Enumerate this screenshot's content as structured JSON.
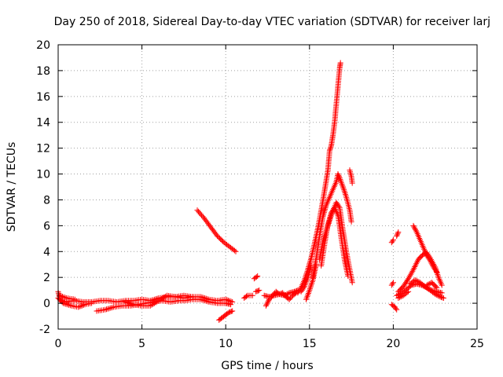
{
  "chart_data": {
    "type": "scatter",
    "title": "Day 250 of 2018, Sidereal Day-to-day VTEC variation (SDTVAR) for receiver larj",
    "xlabel": "GPS time / hours",
    "ylabel": "SDTVAR / TECUs",
    "xlim": [
      0,
      25
    ],
    "ylim": [
      -2,
      20
    ],
    "xticks": [
      "0",
      "5",
      "10",
      "15",
      "20",
      "25"
    ],
    "yticks": [
      "-2",
      "0",
      "2",
      "4",
      "6",
      "8",
      "10",
      "12",
      "14",
      "16",
      "18",
      "20"
    ],
    "grid": true,
    "marker": "plus",
    "color": "#ff0000",
    "tracks": [
      {
        "points": [
          [
            0.0,
            0.9
          ],
          [
            0.1,
            0.3
          ],
          [
            0.4,
            0.1
          ],
          [
            1.0,
            0.2
          ],
          [
            1.5,
            0.1
          ],
          [
            2.0,
            0.1
          ],
          [
            2.5,
            0.2
          ],
          [
            3.0,
            0.2
          ],
          [
            3.5,
            0.1
          ],
          [
            4.0,
            0.2
          ],
          [
            4.5,
            0.2
          ],
          [
            5.0,
            0.3
          ],
          [
            5.5,
            0.2
          ],
          [
            6.0,
            0.4
          ],
          [
            6.5,
            0.5
          ],
          [
            7.0,
            0.5
          ],
          [
            7.5,
            0.4
          ],
          [
            8.0,
            0.5
          ],
          [
            8.5,
            0.5
          ],
          [
            9.0,
            0.3
          ],
          [
            9.5,
            0.2
          ],
          [
            10.0,
            0.3
          ],
          [
            10.4,
            0.1
          ]
        ]
      },
      {
        "points": [
          [
            0.0,
            0.4
          ],
          [
            0.3,
            0.0
          ],
          [
            0.8,
            -0.2
          ],
          [
            1.2,
            -0.3
          ],
          [
            1.6,
            -0.1
          ],
          [
            2.0,
            0.0
          ]
        ]
      },
      {
        "points": [
          [
            2.3,
            -0.6
          ],
          [
            2.8,
            -0.5
          ],
          [
            3.3,
            -0.3
          ],
          [
            3.8,
            -0.2
          ],
          [
            4.3,
            -0.2
          ],
          [
            4.8,
            -0.1
          ],
          [
            5.2,
            0.0
          ],
          [
            5.7,
            0.1
          ],
          [
            6.2,
            0.2
          ],
          [
            6.7,
            0.1
          ],
          [
            7.2,
            0.2
          ],
          [
            7.6,
            0.2
          ],
          [
            8.0,
            0.3
          ],
          [
            8.5,
            0.3
          ],
          [
            9.0,
            0.1
          ],
          [
            9.5,
            0.0
          ],
          [
            10.0,
            0.0
          ],
          [
            10.3,
            -0.1
          ]
        ]
      },
      {
        "points": [
          [
            0.1,
            0.6
          ],
          [
            0.5,
            0.4
          ],
          [
            1.0,
            0.3
          ]
        ]
      },
      {
        "points": [
          [
            4.0,
            0.1
          ],
          [
            4.5,
            -0.1
          ],
          [
            5.0,
            -0.2
          ],
          [
            5.5,
            -0.2
          ],
          [
            6.0,
            0.2
          ],
          [
            6.5,
            0.6
          ],
          [
            7.0,
            0.5
          ],
          [
            7.5,
            0.6
          ],
          [
            8.0,
            0.5
          ]
        ]
      },
      {
        "points": [
          [
            8.3,
            7.2
          ],
          [
            8.7,
            6.6
          ],
          [
            9.1,
            5.9
          ],
          [
            9.5,
            5.2
          ],
          [
            9.9,
            4.7
          ],
          [
            10.3,
            4.3
          ],
          [
            10.6,
            4.0
          ]
        ]
      },
      {
        "points": [
          [
            9.6,
            -1.3
          ],
          [
            9.8,
            -1.1
          ],
          [
            10.0,
            -0.9
          ],
          [
            10.2,
            -0.7
          ],
          [
            10.4,
            -0.6
          ]
        ]
      },
      {
        "points": [
          [
            11.1,
            0.4
          ],
          [
            11.3,
            0.6
          ],
          [
            11.6,
            0.6
          ]
        ]
      },
      {
        "points": [
          [
            11.7,
            1.9
          ],
          [
            11.9,
            2.1
          ]
        ]
      },
      {
        "points": [
          [
            11.8,
            0.9
          ],
          [
            12.0,
            1.0
          ]
        ]
      },
      {
        "points": [
          [
            12.3,
            0.6
          ],
          [
            12.6,
            0.5
          ],
          [
            12.9,
            0.6
          ],
          [
            13.2,
            0.7
          ],
          [
            13.5,
            0.6
          ],
          [
            13.8,
            0.8
          ],
          [
            14.1,
            0.9
          ],
          [
            14.3,
            1.0
          ]
        ]
      },
      {
        "points": [
          [
            12.4,
            -0.2
          ],
          [
            12.6,
            0.3
          ],
          [
            12.8,
            0.6
          ],
          [
            13.0,
            0.9
          ],
          [
            13.2,
            0.7
          ],
          [
            13.4,
            0.8
          ],
          [
            13.6,
            0.5
          ],
          [
            13.8,
            0.3
          ],
          [
            14.0,
            0.6
          ],
          [
            14.2,
            0.8
          ]
        ]
      },
      {
        "points": [
          [
            14.3,
            0.8
          ],
          [
            14.5,
            1.2
          ],
          [
            14.7,
            1.8
          ],
          [
            14.9,
            2.6
          ],
          [
            15.1,
            3.5
          ],
          [
            15.3,
            4.6
          ],
          [
            15.5,
            5.8
          ],
          [
            15.7,
            7.2
          ],
          [
            15.9,
            8.7
          ],
          [
            16.1,
            10.3
          ],
          [
            16.2,
            11.8
          ],
          [
            16.3,
            12.2
          ],
          [
            16.4,
            13.0
          ],
          [
            16.5,
            14.0
          ],
          [
            16.6,
            15.4
          ],
          [
            16.7,
            16.8
          ],
          [
            16.8,
            18.2
          ],
          [
            16.85,
            18.6
          ]
        ]
      },
      {
        "points": [
          [
            14.5,
            0.9
          ],
          [
            14.7,
            1.3
          ],
          [
            14.9,
            2.0
          ],
          [
            15.1,
            2.9
          ]
        ]
      },
      {
        "points": [
          [
            14.8,
            0.3
          ],
          [
            15.0,
            1.0
          ],
          [
            15.2,
            1.8
          ],
          [
            15.4,
            3.0
          ]
        ]
      },
      {
        "points": [
          [
            15.2,
            2.0
          ],
          [
            15.4,
            3.5
          ],
          [
            15.6,
            5.2
          ],
          [
            15.8,
            6.7
          ],
          [
            16.0,
            7.6
          ],
          [
            16.2,
            8.2
          ],
          [
            16.4,
            8.8
          ],
          [
            16.6,
            9.4
          ],
          [
            16.7,
            10.0
          ],
          [
            16.8,
            9.7
          ],
          [
            17.0,
            9.0
          ],
          [
            17.2,
            8.2
          ],
          [
            17.4,
            7.2
          ],
          [
            17.5,
            6.3
          ]
        ]
      },
      {
        "points": [
          [
            15.6,
            3.4
          ],
          [
            15.8,
            4.8
          ],
          [
            16.0,
            5.6
          ],
          [
            16.2,
            6.4
          ],
          [
            16.4,
            7.2
          ],
          [
            16.6,
            7.8
          ],
          [
            16.8,
            7.4
          ],
          [
            17.0,
            5.6
          ],
          [
            17.2,
            4.0
          ],
          [
            17.4,
            2.6
          ],
          [
            17.55,
            1.6
          ]
        ]
      },
      {
        "points": [
          [
            15.7,
            2.9
          ],
          [
            15.9,
            4.6
          ],
          [
            16.1,
            6.1
          ],
          [
            16.3,
            7.0
          ],
          [
            16.5,
            7.4
          ],
          [
            16.7,
            6.8
          ],
          [
            16.9,
            5.0
          ],
          [
            17.1,
            3.3
          ],
          [
            17.3,
            2.1
          ]
        ]
      },
      {
        "points": [
          [
            17.4,
            10.3
          ],
          [
            17.5,
            9.8
          ],
          [
            17.55,
            9.3
          ]
        ]
      },
      {
        "points": [
          [
            19.9,
            4.7
          ],
          [
            20.0,
            4.9
          ]
        ]
      },
      {
        "points": [
          [
            20.2,
            5.2
          ],
          [
            20.3,
            5.5
          ]
        ]
      },
      {
        "points": [
          [
            19.9,
            -0.1
          ],
          [
            20.1,
            -0.3
          ],
          [
            20.2,
            -0.5
          ]
        ]
      },
      {
        "points": [
          [
            19.9,
            1.4
          ],
          [
            20.0,
            1.6
          ]
        ]
      },
      {
        "points": [
          [
            20.2,
            0.6
          ],
          [
            20.5,
            0.8
          ],
          [
            20.8,
            1.1
          ],
          [
            21.1,
            1.4
          ],
          [
            21.4,
            1.5
          ],
          [
            21.7,
            1.4
          ],
          [
            22.0,
            1.2
          ],
          [
            22.3,
            1.0
          ],
          [
            22.6,
            0.9
          ],
          [
            22.9,
            0.8
          ]
        ]
      },
      {
        "points": [
          [
            20.3,
            0.9
          ],
          [
            20.6,
            1.3
          ],
          [
            20.9,
            1.9
          ],
          [
            21.2,
            2.6
          ],
          [
            21.5,
            3.4
          ],
          [
            21.8,
            3.8
          ],
          [
            22.0,
            3.9
          ],
          [
            22.2,
            3.5
          ],
          [
            22.5,
            2.8
          ],
          [
            22.7,
            2.0
          ],
          [
            22.9,
            1.4
          ]
        ]
      },
      {
        "points": [
          [
            21.2,
            6.0
          ],
          [
            21.4,
            5.5
          ],
          [
            21.6,
            4.9
          ],
          [
            21.8,
            4.3
          ],
          [
            22.0,
            3.7
          ],
          [
            22.2,
            3.3
          ],
          [
            22.4,
            2.8
          ],
          [
            22.6,
            2.4
          ]
        ]
      },
      {
        "points": [
          [
            21.0,
            1.5
          ],
          [
            21.3,
            1.8
          ],
          [
            21.6,
            1.6
          ],
          [
            21.9,
            1.3
          ],
          [
            22.2,
            1.0
          ],
          [
            22.5,
            0.7
          ],
          [
            22.8,
            0.5
          ],
          [
            23.0,
            0.4
          ]
        ]
      },
      {
        "points": [
          [
            20.3,
            0.4
          ],
          [
            20.6,
            0.6
          ],
          [
            20.9,
            0.9
          ]
        ]
      },
      {
        "points": [
          [
            22.0,
            1.4
          ],
          [
            22.3,
            1.6
          ],
          [
            22.6,
            1.2
          ]
        ]
      }
    ]
  }
}
